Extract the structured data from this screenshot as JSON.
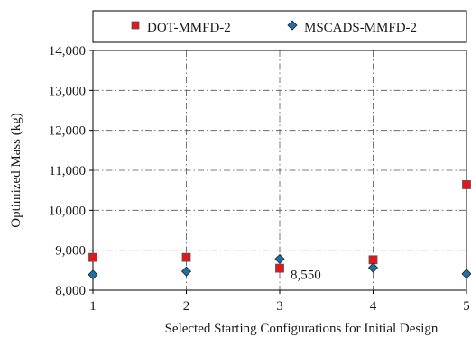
{
  "chart_data": {
    "type": "scatter",
    "xlabel": "Selected Starting Configurations for Initial Design",
    "ylabel": "Optimized Mass (kg)",
    "xlim": [
      1,
      5
    ],
    "ylim": [
      8000,
      14000
    ],
    "x_ticks": [
      1,
      2,
      3,
      4,
      5
    ],
    "y_ticks": [
      8000,
      9000,
      10000,
      11000,
      12000,
      13000,
      14000
    ],
    "y_tick_labels": [
      "8,000",
      "9,000",
      "10,000",
      "11,000",
      "12,000",
      "13,000",
      "14,000"
    ],
    "grid": "dash-dot",
    "legend_position": "top",
    "x": [
      1,
      2,
      3,
      4,
      5
    ],
    "series": [
      {
        "name": "DOT-MMFD-2",
        "marker": "square",
        "color": "#e3161b",
        "values": [
          8820,
          8820,
          8550,
          8760,
          10640
        ]
      },
      {
        "name": "MSCADS-MMFD-2",
        "marker": "diamond",
        "color": "#1f6fa8",
        "values": [
          8390,
          8470,
          8780,
          8560,
          8410
        ]
      }
    ],
    "annotations": [
      {
        "text": "8,550",
        "x": 3,
        "y": 8550
      }
    ]
  }
}
